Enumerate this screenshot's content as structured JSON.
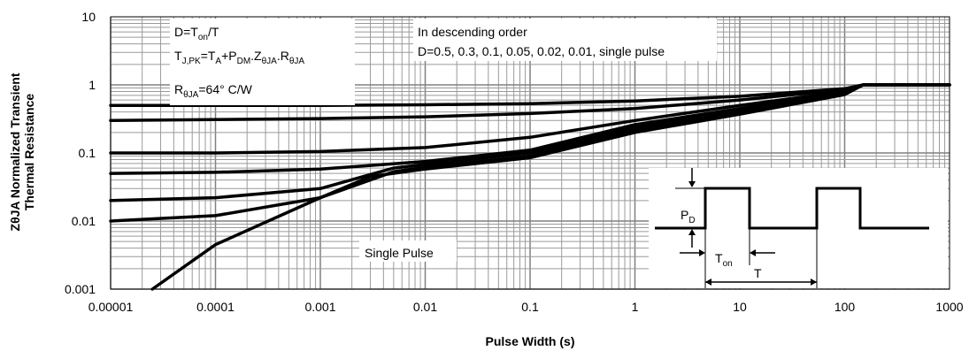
{
  "chart_data": {
    "type": "line",
    "xlabel": "Pulse Width (s)",
    "ylabel_line1": "ZθJA Normalized Transient",
    "ylabel_line2": "Thermal Resistance",
    "xscale": "log",
    "yscale": "log",
    "xlim": [
      1e-05,
      1000
    ],
    "ylim": [
      0.001,
      10
    ],
    "x_tick_labels": [
      "0.00001",
      "0.0001",
      "0.001",
      "0.01",
      "0.1",
      "1",
      "10",
      "100",
      "1000"
    ],
    "y_tick_labels": [
      "0.001",
      "0.01",
      "0.1",
      "1",
      "10"
    ],
    "grid": true,
    "annotations": {
      "formula_box": {
        "line1": "D=T",
        "line1_sub": "on",
        "line1_end": "/T",
        "line2_a": "T",
        "line2_sub_a": "J,PK",
        "line2_b": "=T",
        "line2_sub_b": "A",
        "line2_c": "+P",
        "line2_sub_c": "DM",
        "line2_d": ".Z",
        "line2_sub_d": "θJA",
        "line2_e": ".R",
        "line2_sub_e": "θJA",
        "line3_a": "R",
        "line3_sub": "θJA",
        "line3_b": "=64° C/W"
      },
      "order_box": {
        "line1": "In descending order",
        "line2": "D=0.5, 0.3, 0.1, 0.05, 0.02, 0.01, single pulse"
      },
      "single_pulse_label": "Single Pulse",
      "waveform": {
        "pd_label": "P",
        "pd_sub": "D",
        "ton_label": "T",
        "ton_sub": "on",
        "t_label": "T"
      }
    },
    "series": [
      {
        "x": [
          1e-05,
          0.001,
          0.01,
          0.1,
          1,
          10,
          100,
          150,
          1000
        ],
        "values": [
          0.5,
          0.5,
          0.51,
          0.53,
          0.58,
          0.68,
          0.88,
          1.0,
          1.0
        ]
      },
      {
        "x": [
          1e-05,
          0.001,
          0.01,
          0.1,
          1,
          10,
          100,
          150,
          1000
        ],
        "values": [
          0.3,
          0.32,
          0.34,
          0.38,
          0.45,
          0.6,
          0.85,
          1.0,
          1.0
        ]
      },
      {
        "x": [
          1e-05,
          0.0001,
          0.001,
          0.01,
          0.1,
          1,
          10,
          100,
          150,
          1000
        ],
        "values": [
          0.1,
          0.1,
          0.105,
          0.12,
          0.17,
          0.3,
          0.5,
          0.8,
          1.0,
          1.0
        ]
      },
      {
        "x": [
          1e-05,
          0.0001,
          0.001,
          0.01,
          0.1,
          1,
          10,
          100,
          150,
          1000
        ],
        "values": [
          0.05,
          0.052,
          0.058,
          0.075,
          0.11,
          0.26,
          0.45,
          0.78,
          1.0,
          1.0
        ]
      },
      {
        "x": [
          1e-05,
          0.0001,
          0.001,
          0.005,
          0.01,
          0.1,
          1,
          10,
          100,
          150,
          1000
        ],
        "values": [
          0.02,
          0.022,
          0.03,
          0.06,
          0.068,
          0.1,
          0.24,
          0.42,
          0.76,
          1.0,
          1.0
        ]
      },
      {
        "x": [
          1e-05,
          0.0001,
          0.001,
          0.005,
          0.01,
          0.1,
          1,
          10,
          100,
          150,
          1000
        ],
        "values": [
          0.01,
          0.012,
          0.022,
          0.053,
          0.062,
          0.09,
          0.22,
          0.4,
          0.74,
          1.0,
          1.0
        ]
      },
      {
        "x": [
          2.5e-05,
          0.0001,
          0.001,
          0.003,
          0.01,
          0.1,
          1,
          10,
          100,
          150,
          1000
        ],
        "values": [
          0.001,
          0.0045,
          0.022,
          0.045,
          0.058,
          0.085,
          0.2,
          0.37,
          0.72,
          1.0,
          1.0
        ]
      }
    ]
  }
}
